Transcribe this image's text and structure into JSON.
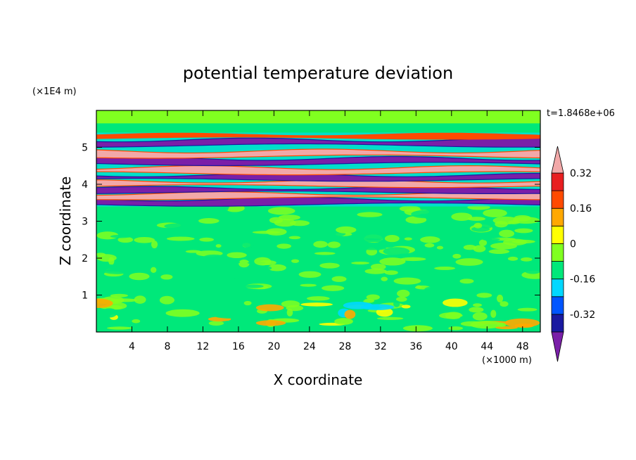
{
  "chart_data": {
    "type": "heatmap",
    "title": "potential temperature deviation",
    "xlabel": "X coordinate",
    "ylabel": "Z coordinate",
    "x_unit": "(×1000 m)",
    "y_unit": "(×1E4 m)",
    "time_label": "t=1.8468e+06",
    "xlim": [
      0,
      50
    ],
    "ylim": [
      0,
      6
    ],
    "x_ticks": [
      4,
      8,
      12,
      16,
      20,
      24,
      28,
      32,
      36,
      40,
      44,
      48
    ],
    "y_ticks": [
      1,
      2,
      3,
      4,
      5
    ],
    "colorbar": {
      "levels": [
        -0.4,
        -0.32,
        -0.24,
        -0.16,
        -0.08,
        0,
        0.08,
        0.16,
        0.24,
        0.32,
        0.4
      ],
      "labeled_levels": [
        "0.32",
        "0.16",
        "0",
        "-0.16",
        "-0.32"
      ],
      "colors_low_to_high": [
        "#7a1fa8",
        "#1a1aa0",
        "#0055ff",
        "#00d8ff",
        "#00e87a",
        "#80ff20",
        "#ffff00",
        "#ffa800",
        "#ff4a00",
        "#e81e20",
        "#f2a8a8"
      ]
    },
    "bands": [
      {
        "z": [
          3.45,
          3.6
        ],
        "level": -0.4
      },
      {
        "z": [
          3.62,
          3.75
        ],
        "level": 0.4
      },
      {
        "z": [
          3.78,
          3.9
        ],
        "level": -0.4
      },
      {
        "z": [
          3.95,
          4.08
        ],
        "level": 0.4
      },
      {
        "z": [
          4.12,
          4.25
        ],
        "level": -0.4
      },
      {
        "z": [
          4.3,
          4.45
        ],
        "level": 0.4
      },
      {
        "z": [
          4.55,
          4.7
        ],
        "level": -0.4
      },
      {
        "z": [
          4.75,
          4.9
        ],
        "level": 0.4
      },
      {
        "z": [
          5.05,
          5.2
        ],
        "level": -0.4
      },
      {
        "z": [
          5.25,
          5.35
        ],
        "level": 0.24
      }
    ]
  }
}
